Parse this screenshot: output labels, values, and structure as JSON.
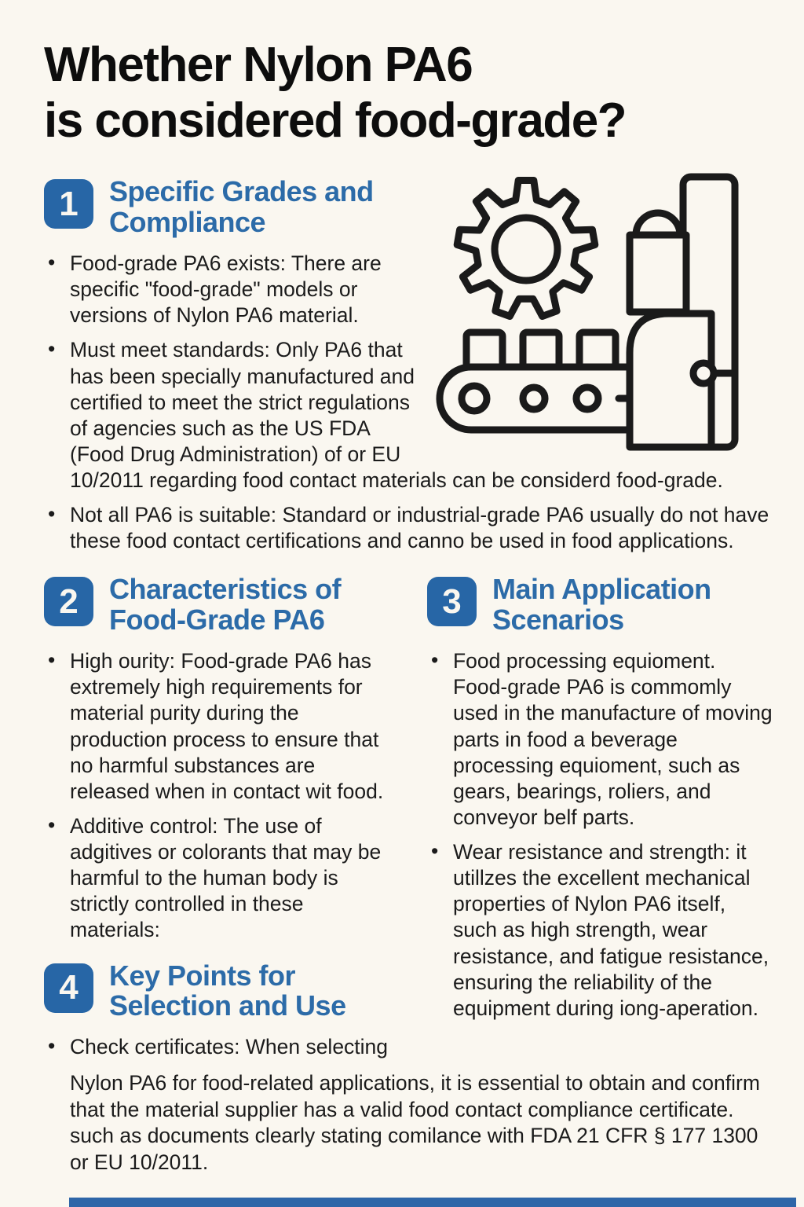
{
  "page": {
    "title_line1": "Whether Nylon PA6",
    "title_line2": "is considered food-grade?"
  },
  "colors": {
    "background": "#FAF7F0",
    "badge_blue": "#2766A6",
    "heading_blue": "#2C6BA8",
    "body_text": "#1b1b1b",
    "footer_bar_blue": "#2E66A8"
  },
  "illustration": {
    "name": "gear-and-conveyor-machine",
    "parts": [
      "gear-icon",
      "conveyor-belt-icon",
      "machine-press-icon"
    ]
  },
  "sections": [
    {
      "number": "1",
      "title_line1": "Specific Grades and",
      "title_line2": "Compliance",
      "bullets": [
        "Food-grade PA6 exists: There are specific \"food-grade\" models or versions of Nylon PA6 material.",
        "Must meet standards: Only PA6 that has been specially manufactured and certified to meet the strict regulations of agencies such as the US FDA (Food Drug Administration) of or EU 10/2011 regarding food contact materials can be considerd food-grade.",
        "Not all PA6 is suitable: Standard or industrial-grade PA6 usually do not have these food contact certifications and canno be used in food applications."
      ]
    },
    {
      "number": "2",
      "title_line1": "Characteristics of",
      "title_line2": "Food-Grade PA6",
      "bullets": [
        "High ourity: Food-grade PA6 has extremely high requirements for material purity during the production process to ensure that no harmful substances are released when in contact wit food.",
        "Additive control: The use of adgitives or colorants that may be harmful to the human body is strictly controlled in these materials:"
      ]
    },
    {
      "number": "3",
      "title_line1": "Main Application",
      "title_line2": "Scenarios",
      "bullets": [
        "Food processing equioment. Food-grade PA6 is commomly used in the manufacture of moving parts in food a beverage processing equioment, such as gears, bearings, roliers, and conveyor belf parts.",
        "Wear resistance and strength: it utillzes the excellent mechanical properties of Nylon PA6 itself, such as high strength, wear resistance, and fatigue resistance, ensuring the reliability of the equipment during iong-aperation."
      ]
    },
    {
      "number": "4",
      "title_line1": "Key Points for",
      "title_line2": "Selection and Use",
      "bullet_intro": "Check certificates: When selecting",
      "bullet_continuation": "Nylon PA6 for food-related applications, it is essential to obtain and confirm that the material supplier has a valid food contact compliance certificate. such as documents clearly stating comilance with FDA 21 CFR § 177 1300 or EU 10/2011."
    }
  ]
}
